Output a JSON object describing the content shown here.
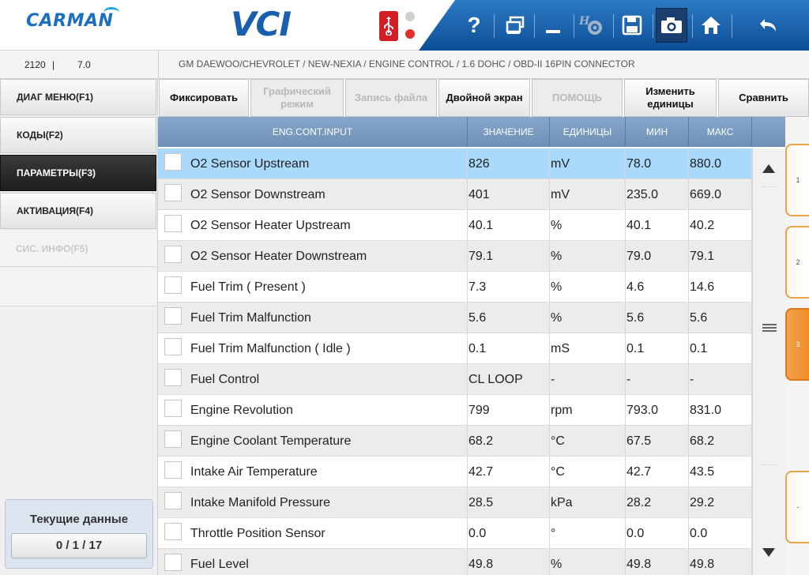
{
  "header": {
    "brand": "CARMAN",
    "product": "VCI",
    "toolbar": [
      {
        "name": "help-icon",
        "glyph": "?"
      },
      {
        "name": "window-switch-icon",
        "glyph": "⧉"
      },
      {
        "name": "minimize-icon",
        "glyph": "—"
      },
      {
        "name": "settings-icon",
        "glyph": "⚙"
      },
      {
        "name": "save-icon",
        "glyph": "💾"
      },
      {
        "name": "camera-icon",
        "glyph": "📷"
      },
      {
        "name": "home-icon",
        "glyph": "⌂"
      },
      {
        "name": "back-icon",
        "glyph": "↶"
      }
    ]
  },
  "infobar": {
    "code": "2120",
    "separator": "|",
    "version": "7.0",
    "breadcrumb": "GM DAEWOO/CHEVROLET / NEW-NEXIA / ENGINE CONTROL / 1.6 DOHC / OBD-II 16PIN CONNECTOR"
  },
  "nav": {
    "items": [
      {
        "label": "ДИАГ МЕНЮ(F1)",
        "state": "normal"
      },
      {
        "label": "КОДЫ(F2)",
        "state": "normal"
      },
      {
        "label": "ПАРАМЕТРЫ(F3)",
        "state": "active"
      },
      {
        "label": "АКТИВАЦИЯ(F4)",
        "state": "normal"
      },
      {
        "label": "СИС. ИНФО(F5)",
        "state": "disabled"
      }
    ],
    "current_title": "Текущие данные",
    "current_counter": "0 / 1 / 17"
  },
  "actions": {
    "freeze": "Фиксировать",
    "graph": "Графический режим",
    "record": "Запись файла",
    "dual": "Двойной экран",
    "help": "ПОМОЩЬ",
    "units": "Изменить единицы",
    "compare": "Сравнить"
  },
  "table": {
    "columns": {
      "name": "ENG.CONT.INPUT",
      "value": "ЗНАЧЕНИЕ",
      "unit": "ЕДИНИЦЫ",
      "min": "МИН",
      "max": "МАКС"
    },
    "rows": [
      {
        "name": "O2 Sensor Upstream",
        "value": "826",
        "unit": "mV",
        "min": "78.0",
        "max": "880.0",
        "selected": true,
        "dropdown": false
      },
      {
        "name": "O2 Sensor Downstream",
        "value": "401",
        "unit": "mV",
        "min": "235.0",
        "max": "669.0",
        "selected": false,
        "dropdown": false
      },
      {
        "name": "O2 Sensor Heater Upstream",
        "value": "40.1",
        "unit": "%",
        "min": "40.1",
        "max": "40.2",
        "selected": false,
        "dropdown": false
      },
      {
        "name": "O2 Sensor Heater Downstream",
        "value": "79.1",
        "unit": "%",
        "min": "79.0",
        "max": "79.1",
        "selected": false,
        "dropdown": false
      },
      {
        "name": "Fuel Trim ( Present )",
        "value": "7.3",
        "unit": "%",
        "min": "4.6",
        "max": "14.6",
        "selected": false,
        "dropdown": false
      },
      {
        "name": "Fuel Trim Malfunction",
        "value": "5.6",
        "unit": "%",
        "min": "5.6",
        "max": "5.6",
        "selected": false,
        "dropdown": false
      },
      {
        "name": "Fuel Trim Malfunction ( Idle )",
        "value": "0.1",
        "unit": "mS",
        "min": "0.1",
        "max": "0.1",
        "selected": false,
        "dropdown": false
      },
      {
        "name": "Fuel Control",
        "value": "CL LOOP",
        "unit": "-",
        "min": "-",
        "max": "-",
        "selected": false,
        "dropdown": false
      },
      {
        "name": "Engine Revolution",
        "value": "799",
        "unit": "rpm",
        "min": "793.0",
        "max": "831.0",
        "selected": false,
        "dropdown": false
      },
      {
        "name": "Engine Coolant Temperature",
        "value": "68.2",
        "unit": "°C",
        "min": "67.5",
        "max": "68.2",
        "selected": false,
        "dropdown": true
      },
      {
        "name": "Intake Air Temperature",
        "value": "42.7",
        "unit": "°C",
        "min": "42.7",
        "max": "43.5",
        "selected": false,
        "dropdown": true
      },
      {
        "name": "Intake Manifold Pressure",
        "value": "28.5",
        "unit": "kPa",
        "min": "28.2",
        "max": "29.2",
        "selected": false,
        "dropdown": true
      },
      {
        "name": "Throttle Position Sensor",
        "value": "0.0",
        "unit": "°",
        "min": "0.0",
        "max": "0.0",
        "selected": false,
        "dropdown": false
      },
      {
        "name": "Fuel Level",
        "value": "49.8",
        "unit": "%",
        "min": "49.8",
        "max": "49.8",
        "selected": false,
        "dropdown": false
      }
    ]
  },
  "right_tabs": [
    {
      "label": "1",
      "active": false
    },
    {
      "label": "2",
      "active": false
    },
    {
      "label": "3",
      "active": true
    },
    {
      "label": "-",
      "active": false
    }
  ],
  "colors": {
    "toolbar": "#1a5fae",
    "selected_row": "#a9d9fb",
    "table_header": "#7a9bc0",
    "tab_accent": "#ef8e2a",
    "usb_red": "#d21f26"
  }
}
